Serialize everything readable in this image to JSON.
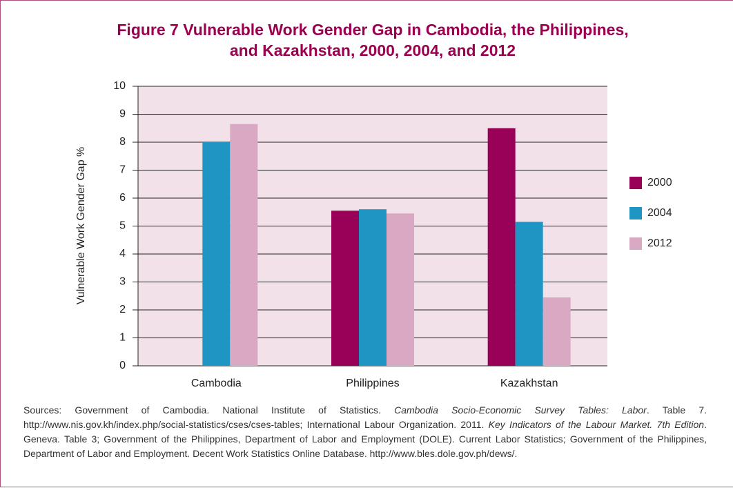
{
  "chart_data": {
    "type": "bar",
    "title": [
      "Figure 7    Vulnerable Work Gender Gap in Cambodia, the Philippines,",
      "and Kazakhstan, 2000, 2004, and 2012"
    ],
    "y_label": "Vulnerable Work Gender Gap %",
    "categories": [
      "Cambodia",
      "Philippines",
      "Kazakhstan"
    ],
    "series": [
      {
        "name": "2000",
        "color": "#990057",
        "values": [
          null,
          5.55,
          8.5
        ]
      },
      {
        "name": "2004",
        "color": "#1f95c3",
        "values": [
          8.0,
          5.6,
          5.15
        ]
      },
      {
        "name": "2012",
        "color": "#d9a9c3",
        "values": [
          8.65,
          5.45,
          2.45
        ]
      }
    ],
    "ylim": [
      0,
      10
    ],
    "yticks": [
      0,
      1,
      2,
      3,
      4,
      5,
      6,
      7,
      8,
      9,
      10
    ],
    "grid": true,
    "legend": "right",
    "note": [
      "Sources: Government of Cambodia. National Institute of Statistics. ",
      "Cambodia Socio-Economic Survey Tables: Labor",
      ". Table 7. http://www.nis.gov.kh/index.php/social-statistics/cses/cses-tables; International Labour Organization. 2011. ",
      "Key Indicators of the Labour Market. 7th Edition",
      ". Geneva. Table 3; Government of the Philippines, Department of Labor and Employment (DOLE). Current Labor Statistics; Government of the Philippines, Department of Labor and Employment. Decent Work Statistics Online Database. http://www.bles.dole.gov.ph/dews/."
    ]
  }
}
